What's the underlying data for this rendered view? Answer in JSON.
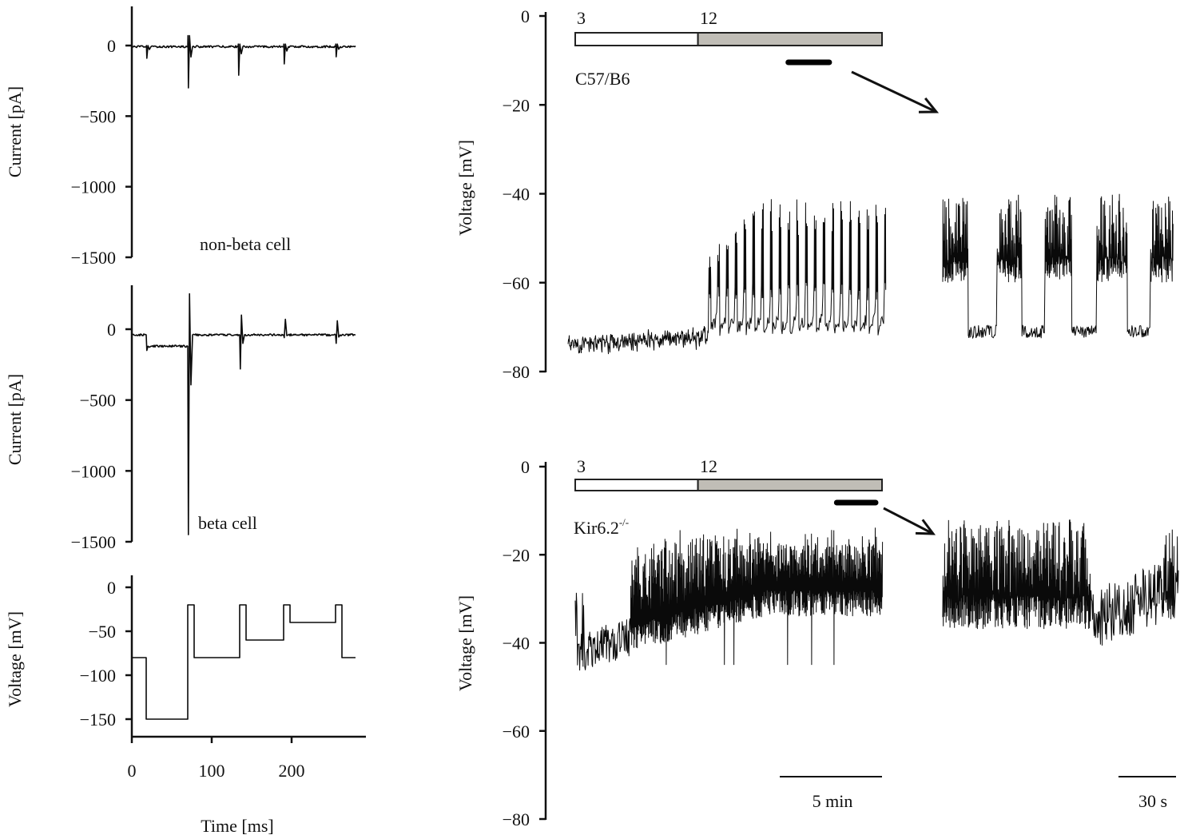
{
  "chart_data": [
    {
      "id": "non-beta",
      "type": "line",
      "ylabel": "Current [pA]",
      "yticks": [
        0,
        -500,
        -1000,
        -1500
      ],
      "ylim": [
        -1500,
        280
      ],
      "xlim": [
        0,
        280
      ],
      "annotation": "non-beta cell",
      "baseline_pA": 0,
      "transients": [
        {
          "t_ms": 18,
          "down": -90,
          "up": 0
        },
        {
          "t_ms": 70,
          "down": -300,
          "up": 70
        },
        {
          "t_ms": 133,
          "down": -210,
          "up": 10
        },
        {
          "t_ms": 190,
          "down": -130,
          "up": 10
        },
        {
          "t_ms": 255,
          "down": -80,
          "up": 10
        }
      ]
    },
    {
      "id": "beta",
      "type": "line",
      "ylabel": "Current [pA]",
      "yticks": [
        0,
        -500,
        -1000,
        -1500
      ],
      "ylim": [
        -1500,
        300
      ],
      "xlim": [
        0,
        280
      ],
      "annotation": "beta cell",
      "holding_segments": [
        {
          "start_ms": 0,
          "end_ms": 18,
          "pA": -40
        },
        {
          "start_ms": 18,
          "end_ms": 70,
          "pA": -120
        },
        {
          "start_ms": 70,
          "end_ms": 280,
          "pA": -40
        }
      ],
      "transients": [
        {
          "t_ms": 18,
          "down": -150,
          "up": -120
        },
        {
          "t_ms": 70,
          "down": -1450,
          "up": 250
        },
        {
          "t_ms": 135,
          "down": -280,
          "up": 100
        },
        {
          "t_ms": 190,
          "down": -60,
          "up": 70
        },
        {
          "t_ms": 255,
          "down": -100,
          "up": 60
        }
      ]
    },
    {
      "id": "protocol",
      "type": "line",
      "ylabel": "Voltage [mV]",
      "xlabel": "Time [ms]",
      "xticks": [
        0,
        100,
        200
      ],
      "yticks": [
        0,
        -50,
        -100,
        -150
      ],
      "ylim": [
        -170,
        15
      ],
      "xlim": [
        0,
        280
      ],
      "steps": [
        {
          "start_ms": 0,
          "end_ms": 18,
          "mV": -80
        },
        {
          "start_ms": 18,
          "end_ms": 70,
          "mV": -150
        },
        {
          "start_ms": 70,
          "end_ms": 78,
          "mV": -20
        },
        {
          "start_ms": 78,
          "end_ms": 135,
          "mV": -80
        },
        {
          "start_ms": 135,
          "end_ms": 143,
          "mV": -20
        },
        {
          "start_ms": 143,
          "end_ms": 190,
          "mV": -60
        },
        {
          "start_ms": 190,
          "end_ms": 198,
          "mV": -20
        },
        {
          "start_ms": 198,
          "end_ms": 255,
          "mV": -40
        },
        {
          "start_ms": 255,
          "end_ms": 263,
          "mV": -20
        },
        {
          "start_ms": 263,
          "end_ms": 280,
          "mV": -80
        }
      ]
    },
    {
      "id": "c57",
      "type": "line",
      "ylabel": "Voltage [mV]",
      "yticks": [
        0,
        -20,
        -40,
        -60,
        -80
      ],
      "ylim": [
        -80,
        0
      ],
      "label": "C57/B6",
      "glucose": [
        {
          "label": "3",
          "start_min": 0,
          "end_min": 6,
          "color": "#ffffff"
        },
        {
          "label": "12",
          "start_min": 6,
          "end_min": 15,
          "color": "#c0bdb6"
        }
      ],
      "expanded_window_min": [
        11.2,
        13.2
      ],
      "main_trace": {
        "duration_min": 15.3,
        "resting_mV": -74,
        "burst_onset_min": 6.5,
        "silent_mV": -70,
        "plateau_mV": -62,
        "spike_peak_mV": -41
      },
      "inset_trace": {
        "duration_s": 120,
        "plateau_intervals_s": [
          [
            0,
            13
          ],
          [
            28,
            41
          ],
          [
            53,
            67
          ],
          [
            80,
            96
          ],
          [
            108,
            120
          ]
        ],
        "plateau_range_mV": [
          -60,
          -42
        ],
        "silent_mV": -70
      }
    },
    {
      "id": "kir62",
      "type": "line",
      "ylabel": "Voltage [mV]",
      "yticks": [
        0,
        -20,
        -40,
        -60,
        -80
      ],
      "ylim": [
        -80,
        0
      ],
      "label": "Kir6.2",
      "label_sup": "-/-",
      "glucose": [
        {
          "label": "3",
          "start_min": 0,
          "end_min": 6,
          "color": "#ffffff"
        },
        {
          "label": "12",
          "start_min": 6,
          "end_min": 15,
          "color": "#c0bdb6"
        }
      ],
      "expanded_window_min": [
        13.1,
        15
      ],
      "main_trace": {
        "duration_min": 15,
        "initial_range_mV": [
          -47,
          -38
        ],
        "dense_onset_min": 2.7,
        "dense_range_mV": [
          -42,
          -13
        ]
      },
      "inset_trace": {
        "duration_s": 123,
        "dense_until_s": 77,
        "dense_range_mV": [
          -37,
          -14
        ],
        "late_range_mV": [
          -42,
          -28
        ]
      }
    }
  ],
  "scale_bars": {
    "long": "5 min",
    "inset": "30 s"
  }
}
